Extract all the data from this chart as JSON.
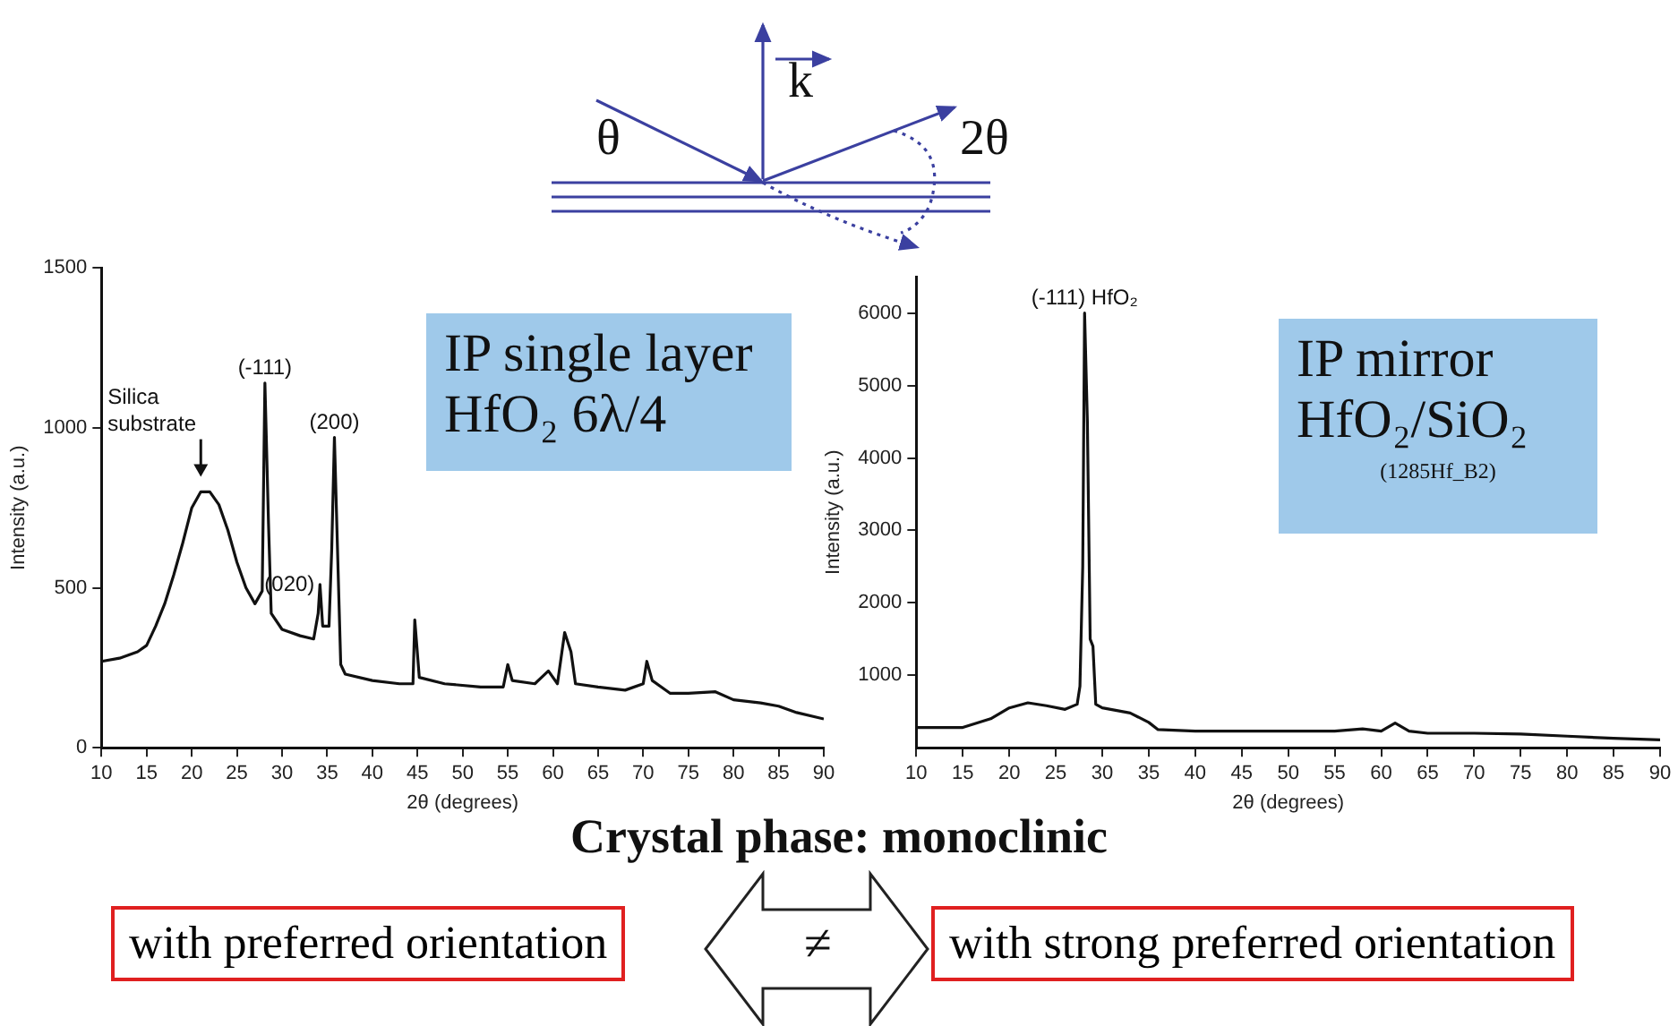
{
  "chart_data": [
    {
      "type": "line",
      "xlabel": "2θ (degrees)",
      "ylabel": "Intensity (a.u.)",
      "xlim": [
        10,
        90
      ],
      "xticks": [
        10,
        15,
        20,
        25,
        30,
        35,
        40,
        45,
        50,
        55,
        60,
        65,
        70,
        75,
        80,
        85,
        90
      ],
      "ylim": [
        0,
        1500
      ],
      "yticks": [
        0,
        500,
        1000,
        1500
      ],
      "grid": false,
      "legend": false,
      "marker": "none",
      "annotations": [
        {
          "text": "Silica substrate",
          "x": 21,
          "y": 830
        },
        {
          "text": "(-111)",
          "x": 28.1,
          "y": 1140
        },
        {
          "text": "(020)",
          "x": 34.2,
          "y": 510
        },
        {
          "text": "(200)",
          "x": 35.8,
          "y": 970
        },
        "IP single layer",
        "HfO₂  6λ/4"
      ],
      "series": [
        {
          "color": "#111111",
          "x": [
            10,
            12,
            14,
            15,
            16,
            17,
            18,
            19,
            20,
            21,
            22,
            23,
            24,
            25,
            26,
            27,
            27.8,
            28.1,
            28.5,
            28.8,
            30,
            32,
            33.5,
            34,
            34.2,
            34.5,
            35.2,
            35.5,
            35.8,
            36.2,
            36.5,
            37,
            40,
            43,
            44.5,
            44.7,
            45.2,
            48,
            52,
            54.5,
            55,
            55.5,
            58,
            59.5,
            60.5,
            61.3,
            62,
            62.5,
            65,
            68,
            70,
            70.4,
            71,
            73,
            75,
            78,
            80,
            83,
            85,
            87,
            90
          ],
          "values": [
            270,
            280,
            300,
            320,
            380,
            450,
            540,
            640,
            750,
            800,
            800,
            760,
            680,
            580,
            500,
            450,
            490,
            1140,
            700,
            420,
            370,
            350,
            340,
            420,
            510,
            380,
            380,
            620,
            970,
            560,
            260,
            230,
            210,
            200,
            200,
            400,
            220,
            200,
            190,
            190,
            260,
            210,
            200,
            240,
            200,
            360,
            300,
            200,
            190,
            180,
            200,
            270,
            210,
            170,
            170,
            175,
            150,
            140,
            130,
            110,
            90
          ]
        }
      ]
    },
    {
      "type": "line",
      "xlabel": "2θ (degrees)",
      "ylabel": "Intensity (a.u.)",
      "xlim": [
        10,
        90
      ],
      "xticks": [
        10,
        15,
        20,
        25,
        30,
        35,
        40,
        45,
        50,
        55,
        60,
        65,
        70,
        75,
        80,
        85,
        90
      ],
      "ylim": [
        0,
        6500
      ],
      "yticks": [
        1000,
        2000,
        3000,
        4000,
        5000,
        6000
      ],
      "grid": false,
      "legend": false,
      "marker": "none",
      "annotations": [
        {
          "text": "(-111) HfO₂",
          "x": 28.1,
          "y": 6000
        },
        "IP mirror",
        "HfO₂/SiO₂",
        "(1285Hf_B2)"
      ],
      "series": [
        {
          "color": "#111111",
          "x": [
            10,
            15,
            18,
            20,
            22,
            24,
            26,
            27.3,
            27.6,
            27.9,
            28.1,
            28.4,
            28.7,
            29,
            29.3,
            30,
            33,
            35,
            36,
            40,
            45,
            50,
            55,
            58,
            60,
            61.5,
            63,
            65,
            70,
            75,
            80,
            85,
            90
          ],
          "values": [
            280,
            280,
            400,
            550,
            620,
            580,
            530,
            600,
            850,
            2500,
            6000,
            4500,
            1500,
            1400,
            600,
            550,
            480,
            350,
            250,
            230,
            230,
            230,
            230,
            260,
            230,
            340,
            230,
            200,
            200,
            190,
            160,
            130,
            110
          ]
        }
      ]
    },
    {
      "type": "other",
      "title": "Crystal phase: monoclinic",
      "annotations": [
        "θ",
        "k",
        "2θ",
        "with preferred orientation",
        "≠",
        "with strong preferred orientation"
      ]
    }
  ]
}
